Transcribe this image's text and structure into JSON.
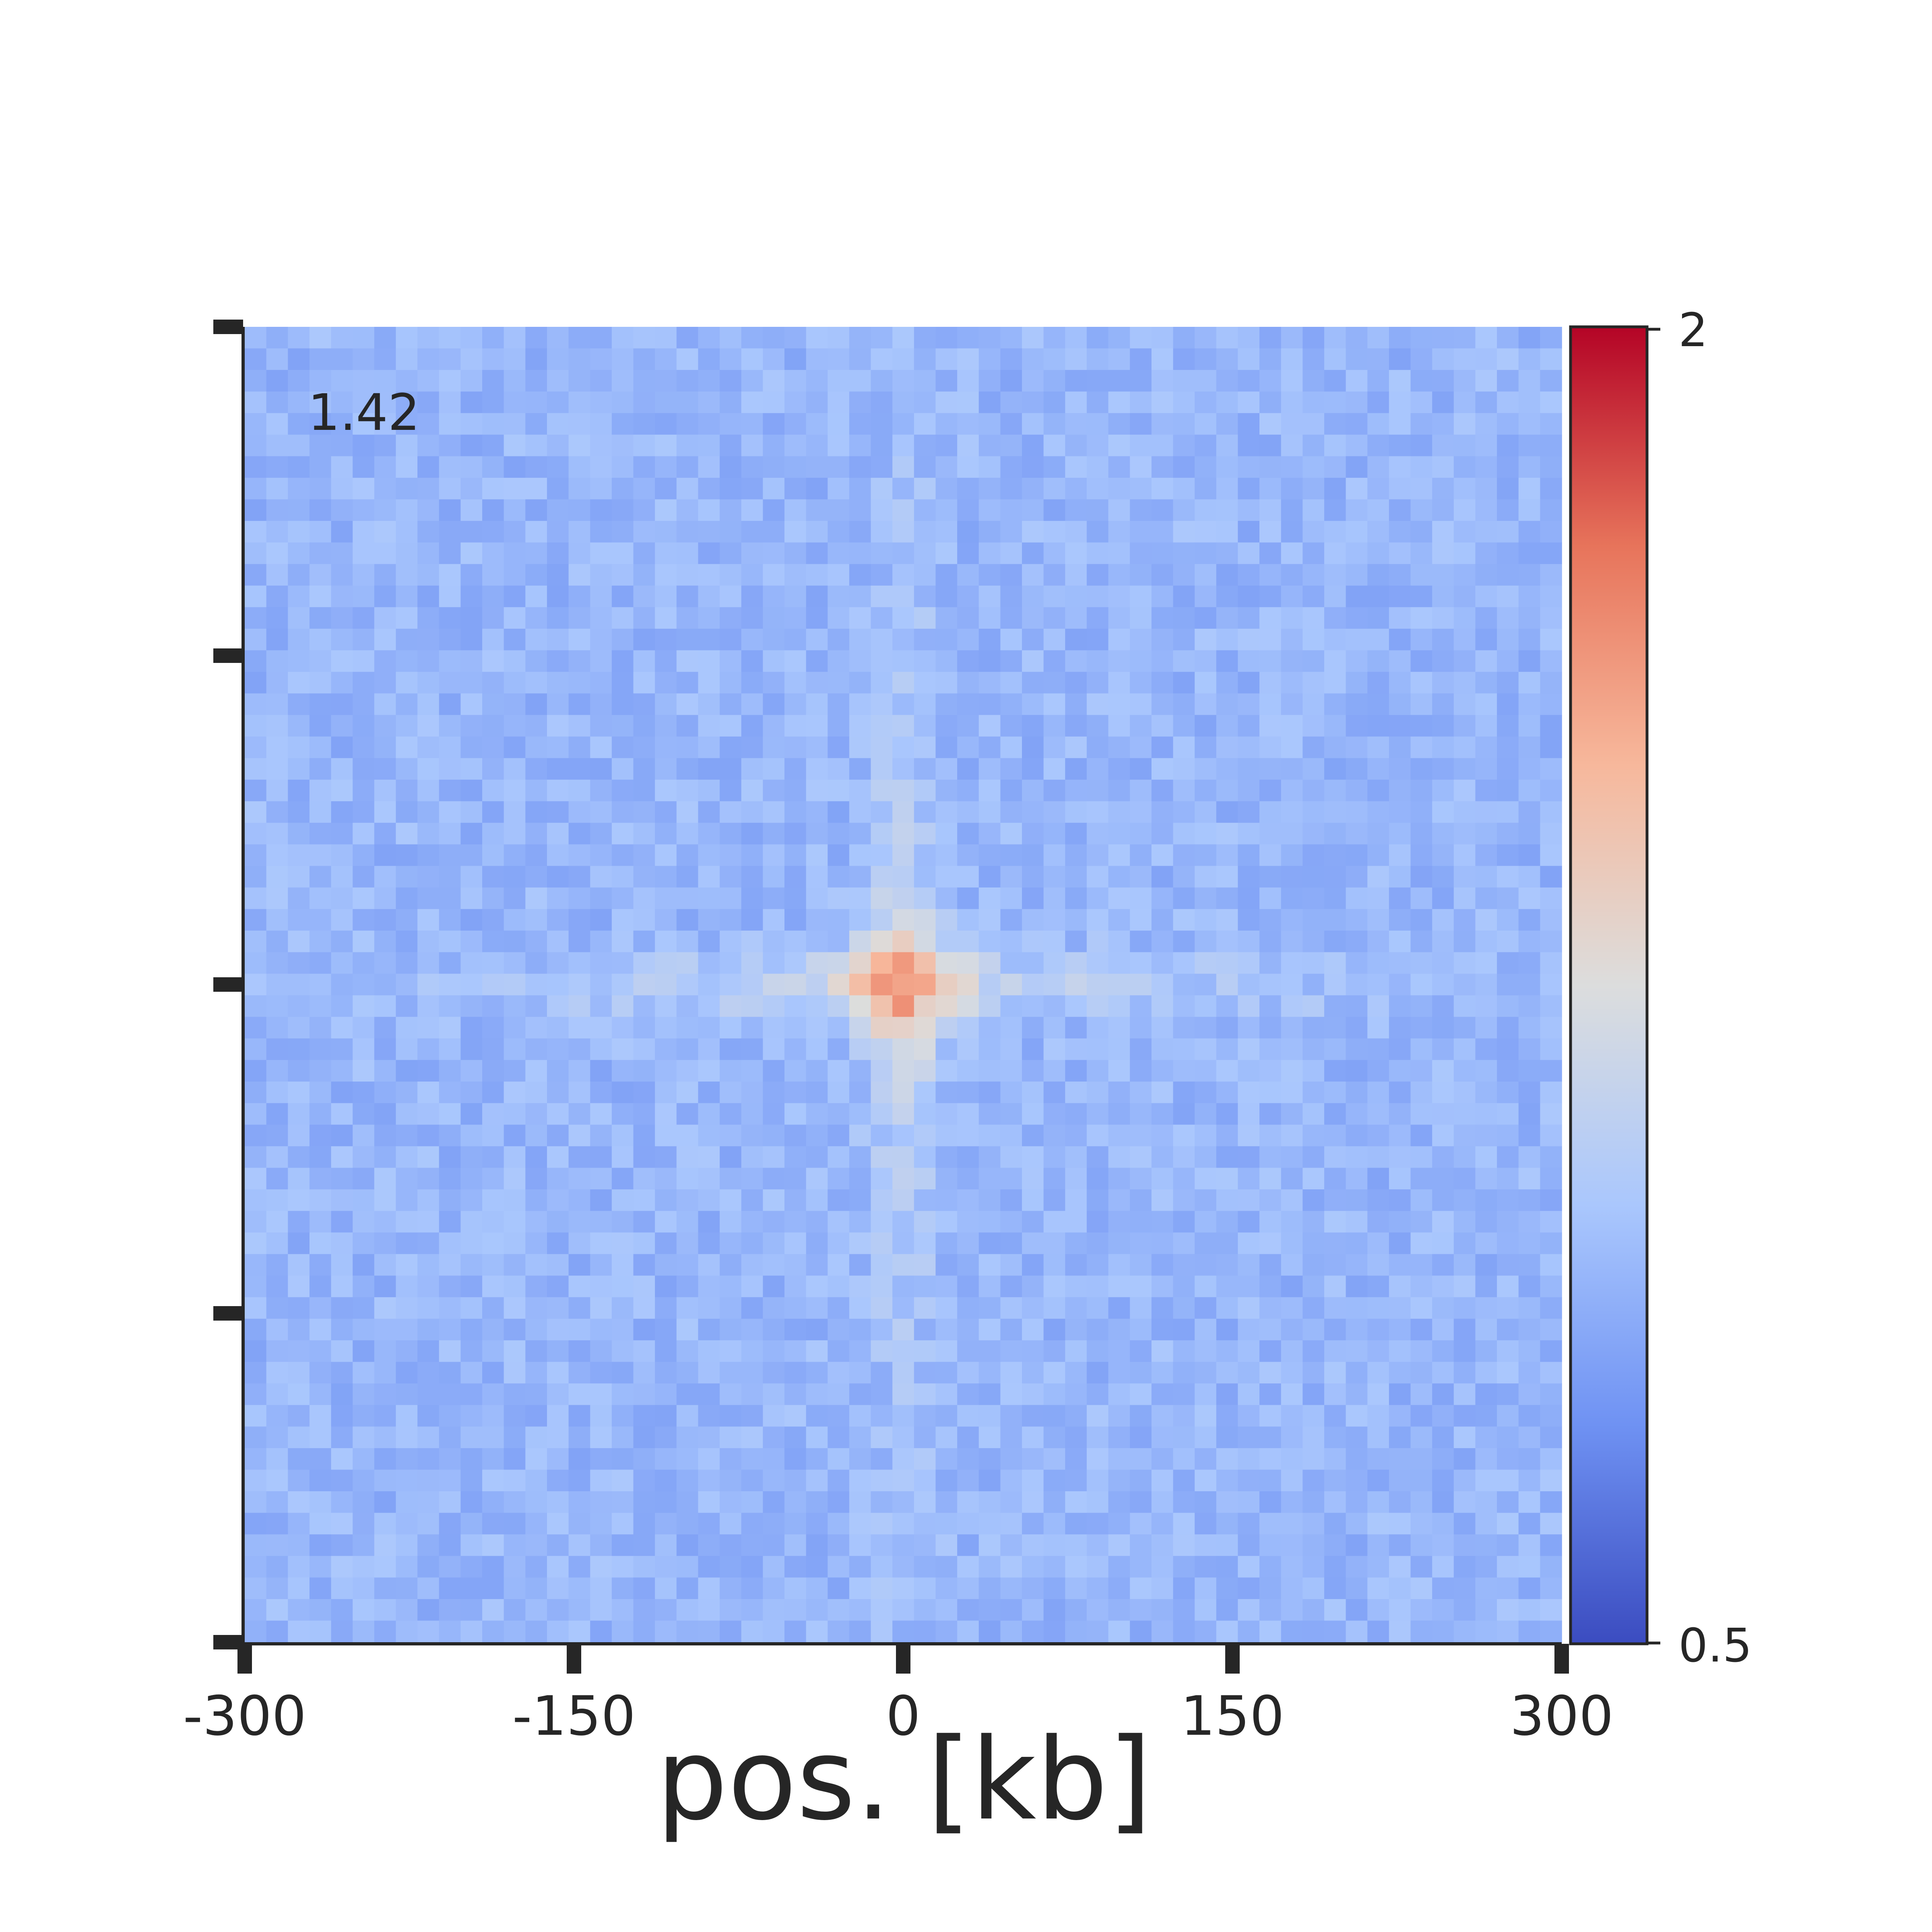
{
  "chart_data": {
    "type": "heatmap",
    "title": "",
    "annotation": "1.42",
    "xlabel": "pos. [kb]",
    "ylabel": "",
    "xlim": [
      -300,
      300
    ],
    "ylim": [
      -300,
      300
    ],
    "xticks": [
      -300,
      -150,
      0,
      150,
      300
    ],
    "xtick_labels": [
      "-300",
      "-150",
      "0",
      "150",
      "300"
    ],
    "yticks": [
      -300,
      -150,
      0,
      150,
      300
    ],
    "ytick_labels": [],
    "grid": false,
    "colormap": "coolwarm",
    "colorbar": {
      "vmin": 0.5,
      "vmax": 2,
      "tick_labels": [
        "2",
        "0.5"
      ],
      "colors": [
        "#3b4cc0",
        "#6f92f3",
        "#aac7fd",
        "#dcdddd",
        "#f7b89c",
        "#e7745b",
        "#b40426"
      ]
    },
    "matrix": {
      "rows": 61,
      "cols": 61,
      "extent_kb": [
        -300,
        300
      ],
      "background_value": 0.92,
      "noise_amplitude": 0.09,
      "center_value": 1.42,
      "stripe_value": 1.16,
      "description": "Aggregate pile-up centered at 0 kb with an enriched center and cross-shaped stripes along the central row and column"
    }
  }
}
